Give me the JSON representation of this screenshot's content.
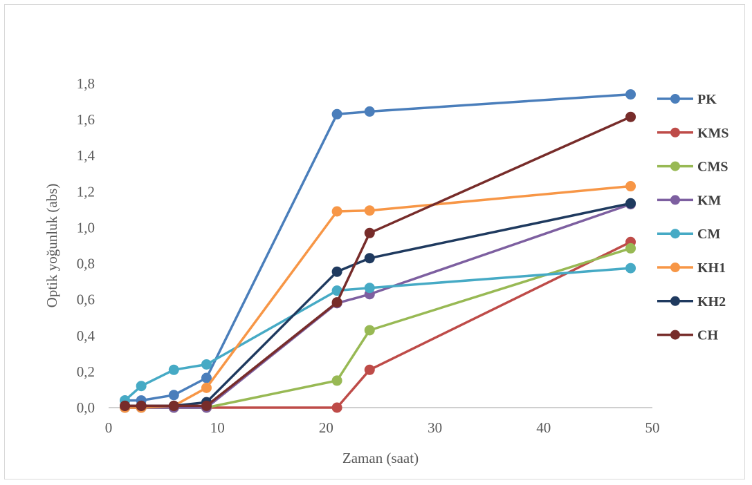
{
  "chart_data": {
    "type": "line",
    "title": "",
    "xlabel": "Zaman (saat)",
    "ylabel": "Optik yoğunluk (abs)",
    "xlim": [
      0,
      50
    ],
    "ylim": [
      0,
      1.8
    ],
    "x_ticks": [
      0,
      10,
      20,
      30,
      40,
      50
    ],
    "x_tick_labels": [
      "0",
      "10",
      "20",
      "30",
      "40",
      "50"
    ],
    "y_ticks": [
      0,
      0.2,
      0.4,
      0.6,
      0.8,
      1.0,
      1.2,
      1.4,
      1.6,
      1.8
    ],
    "y_tick_labels": [
      "0,0",
      "0,2",
      "0,4",
      "0,6",
      "0,8",
      "1,0",
      "1,2",
      "1,4",
      "1,6",
      "1,8"
    ],
    "grid": false,
    "legend_position": "right",
    "x": [
      1.5,
      3,
      6,
      9,
      21,
      24,
      48
    ],
    "series": [
      {
        "name": "PK",
        "color": "#4a7ebb",
        "values": [
          0.04,
          0.04,
          0.07,
          0.165,
          1.63,
          1.645,
          1.74
        ]
      },
      {
        "name": "KMS",
        "color": "#be4b48",
        "values": [
          0.0,
          0.0,
          0.0,
          0.0,
          0.0,
          0.21,
          0.92
        ]
      },
      {
        "name": "CMS",
        "color": "#98b954",
        "values": [
          0.0,
          0.0,
          0.0,
          0.0,
          0.15,
          0.43,
          0.885
        ]
      },
      {
        "name": "KM",
        "color": "#7d5fa0",
        "values": [
          0.0,
          0.0,
          0.0,
          0.0,
          0.58,
          0.63,
          1.13
        ]
      },
      {
        "name": "CM",
        "color": "#46aac5",
        "values": [
          0.04,
          0.12,
          0.21,
          0.24,
          0.65,
          0.665,
          0.775
        ]
      },
      {
        "name": "KH1",
        "color": "#f79646",
        "values": [
          0.0,
          0.0,
          0.01,
          0.11,
          1.09,
          1.095,
          1.23
        ]
      },
      {
        "name": "KH2",
        "color": "#1f3a5f",
        "values": [
          0.01,
          0.01,
          0.01,
          0.03,
          0.755,
          0.83,
          1.135
        ]
      },
      {
        "name": "CH",
        "color": "#772c2a",
        "values": [
          0.01,
          0.01,
          0.01,
          0.01,
          0.585,
          0.97,
          1.615
        ]
      }
    ]
  }
}
